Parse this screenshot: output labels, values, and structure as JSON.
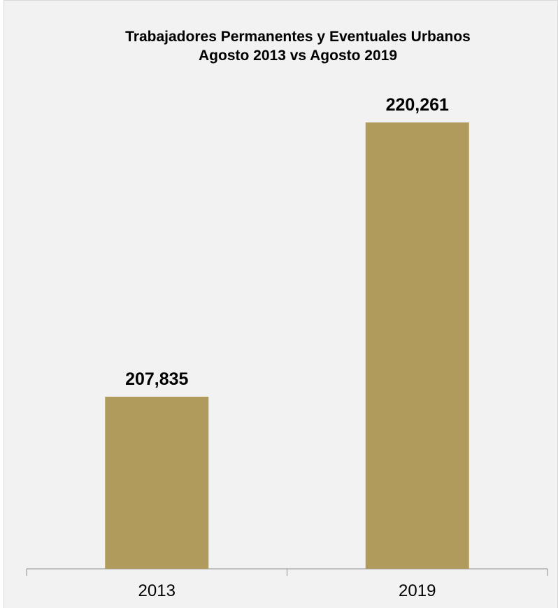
{
  "chart_data": {
    "type": "bar",
    "title_line1": "Trabajadores Permanentes y Eventuales Urbanos",
    "title_line2": "Agosto 2013 vs Agosto 2019",
    "categories": [
      "2013",
      "2019"
    ],
    "values": [
      207835,
      220261
    ],
    "value_labels": [
      "207,835",
      "220,261"
    ],
    "bar_color": "#b09a5c",
    "xlabel": "",
    "ylabel": "",
    "grid": false,
    "legend": "none"
  }
}
